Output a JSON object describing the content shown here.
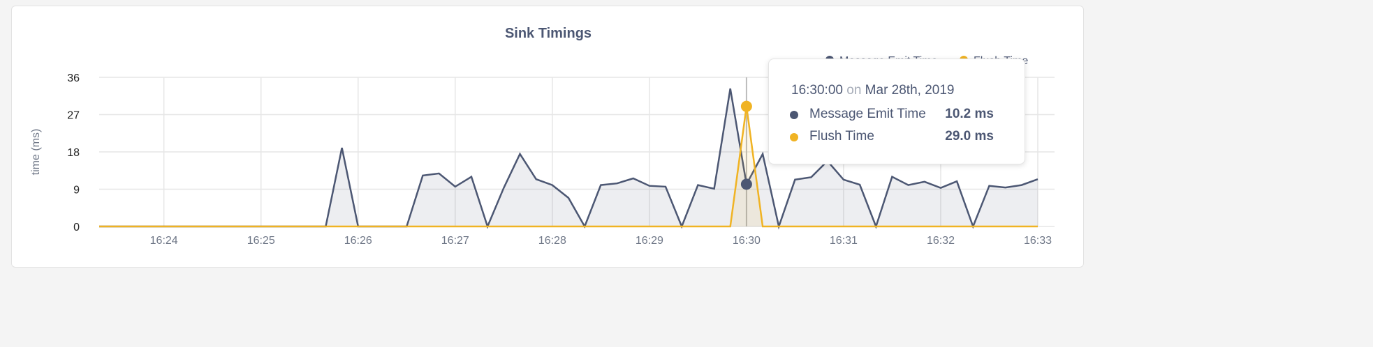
{
  "chart_data": {
    "type": "area",
    "title": "Sink Timings",
    "ylabel": "time (ms)",
    "xlabel": "",
    "ylim": [
      0,
      36
    ],
    "yticks": [
      "0",
      "9",
      "18",
      "27",
      "36"
    ],
    "xticks": [
      "16:24",
      "16:25",
      "16:26",
      "16:27",
      "16:28",
      "16:29",
      "16:30",
      "16:31",
      "16:32",
      "16:33"
    ],
    "xrange": [
      "16:23:20",
      "16:33:00"
    ],
    "x_interval_seconds": 10,
    "grid": true,
    "legend_position": "top-right",
    "series": [
      {
        "name": "Message Emit Time",
        "color": "#4c5773",
        "values": [
          0,
          0,
          0,
          0,
          0,
          0,
          0,
          0,
          0,
          0,
          0,
          0,
          0,
          0,
          0,
          19,
          0,
          0,
          0,
          0,
          12.3,
          12.8,
          9.6,
          12,
          0,
          9.3,
          17.5,
          11.4,
          10,
          6.9,
          0,
          10,
          10.4,
          11.6,
          9.8,
          9.6,
          0,
          10,
          9.1,
          33.3,
          10.2,
          17.5,
          0,
          11.3,
          11.9,
          15.8,
          11.3,
          10.1,
          0,
          12,
          10,
          10.8,
          9.3,
          10.9,
          0,
          9.8,
          9.4,
          10,
          11.4
        ]
      },
      {
        "name": "Flush Time",
        "color": "#f0b323",
        "values": [
          0,
          0,
          0,
          0,
          0,
          0,
          0,
          0,
          0,
          0,
          0,
          0,
          0,
          0,
          0,
          0,
          0,
          0,
          0,
          0,
          0,
          0,
          0,
          0,
          0,
          0,
          0,
          0,
          0,
          0,
          0,
          0,
          0,
          0,
          0,
          0,
          0,
          0,
          0,
          0,
          29.0,
          0,
          0,
          0,
          0,
          0,
          0,
          0,
          0,
          0,
          0,
          0,
          0,
          0,
          0,
          0,
          0,
          0,
          0
        ]
      }
    ],
    "tooltip": {
      "time": "16:30:00",
      "on": "on",
      "date": "Mar 28th, 2019",
      "index": 40,
      "rows": [
        {
          "name": "Message Emit Time",
          "value": "10.2 ms"
        },
        {
          "name": "Flush Time",
          "value": "29.0 ms"
        }
      ]
    }
  }
}
